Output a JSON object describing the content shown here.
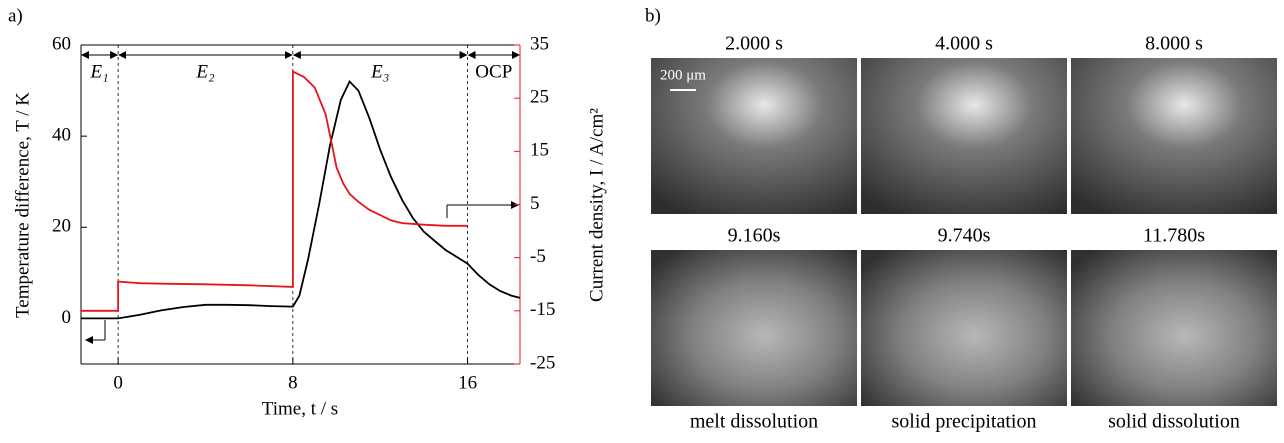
{
  "panel_a": {
    "label": "a)",
    "chart_data": {
      "type": "line",
      "x_label": "Time, t / s",
      "y_label": "Temperature difference, T / K",
      "y2_label": "Current density, I / A/cm²",
      "annotations": [
        "E₁",
        "E₂",
        "E₃",
        "OCP"
      ],
      "xlim": [
        -1.7,
        18.4
      ],
      "xticks": [
        0,
        8,
        16
      ],
      "ylim": [
        -10,
        60
      ],
      "yticks": [
        0,
        20,
        40,
        60
      ],
      "y2lim": [
        -25,
        35
      ],
      "y2ticks": [
        -25,
        -15,
        -5,
        5,
        15,
        25,
        35
      ],
      "series": [
        {
          "color": "#000000",
          "axis": "y",
          "x": [
            -1.7,
            -1,
            0,
            1,
            2,
            3,
            4,
            5,
            6,
            7,
            8,
            8.3,
            8.7,
            9.2,
            9.7,
            10.2,
            10.6,
            11,
            11.5,
            12,
            12.5,
            13,
            13.5,
            14,
            14.5,
            15,
            15.5,
            16,
            16.5,
            17,
            17.5,
            18,
            18.4
          ],
          "values": [
            0,
            0,
            0,
            0.8,
            1.8,
            2.5,
            3,
            3,
            2.9,
            2.7,
            2.6,
            5,
            13,
            25,
            38,
            48,
            52,
            50,
            44,
            37,
            31,
            26,
            22,
            19,
            17,
            15,
            13.5,
            12,
            9.5,
            7.5,
            6,
            5,
            4.5
          ]
        },
        {
          "color": "#e8141c",
          "axis": "y2",
          "x": [
            -1.7,
            -0.5,
            0,
            0,
            1,
            2,
            4,
            6,
            8,
            8,
            8.5,
            9,
            9.5,
            9.8,
            10,
            10.3,
            10.6,
            11,
            11.5,
            12,
            12.5,
            13,
            14,
            15,
            16
          ],
          "values": [
            -15,
            -15,
            -15,
            -9.5,
            -9.8,
            -9.9,
            -10,
            -10.2,
            -10.5,
            30,
            29,
            27,
            22,
            16,
            12,
            9,
            7,
            5.5,
            4,
            3,
            2,
            1.5,
            1.2,
            1,
            1
          ]
        }
      ]
    }
  },
  "panel_b": {
    "label": "b)",
    "scale_bar": "200 μm",
    "rows": [
      {
        "times": [
          "2.000 s",
          "4.000 s",
          "8.000 s"
        ]
      },
      {
        "times": [
          "9.160s",
          "9.740s",
          "11.780s"
        ]
      }
    ],
    "captions": [
      "melt dissolution",
      "solid precipitation",
      "solid dissolution"
    ]
  }
}
